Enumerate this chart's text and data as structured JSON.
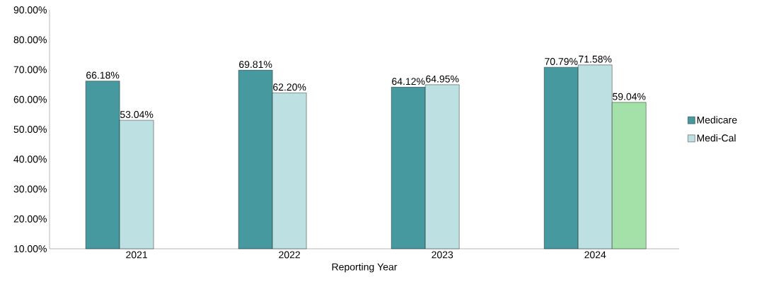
{
  "chart_data": {
    "type": "bar",
    "xlabel": "Reporting Year",
    "categories": [
      "2021",
      "2022",
      "2023",
      "2024"
    ],
    "series": [
      {
        "name": "Medicare",
        "color": "#45999f",
        "values": [
          66.18,
          69.81,
          64.12,
          70.79
        ],
        "value_labels": [
          "66.18%",
          "69.81%",
          "64.12%",
          "70.79%"
        ]
      },
      {
        "name": "Medi-Cal",
        "color": "#bde1e3",
        "values": [
          53.04,
          62.2,
          64.95,
          71.58
        ],
        "value_labels": [
          "53.04%",
          "62.20%",
          "64.95%",
          "71.58%"
        ]
      },
      {
        "color": "#a3e1a8",
        "values": [
          null,
          null,
          null,
          59.04
        ],
        "value_labels": [
          null,
          null,
          null,
          "59.04%"
        ]
      }
    ],
    "ylim": [
      10,
      90
    ],
    "yticks": [
      {
        "value": 10,
        "label": "10.00%"
      },
      {
        "value": 20,
        "label": "20.00%"
      },
      {
        "value": 30,
        "label": "30.00%"
      },
      {
        "value": 40,
        "label": "40.00%"
      },
      {
        "value": 50,
        "label": "50.00%"
      },
      {
        "value": 60,
        "label": "60.00%"
      },
      {
        "value": 70,
        "label": "70.00%"
      },
      {
        "value": 80,
        "label": "80.00%"
      },
      {
        "value": 90,
        "label": "90.00%"
      }
    ],
    "grid": false,
    "legend": "right"
  }
}
